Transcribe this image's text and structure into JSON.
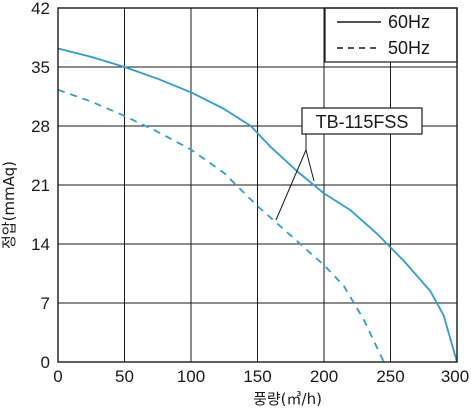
{
  "chart_data": {
    "type": "line",
    "title": "",
    "xlabel": "풍량(㎥/h)",
    "ylabel": "정압(mmAq)",
    "xlim": [
      0,
      300
    ],
    "ylim": [
      0,
      42
    ],
    "xticks": [
      0,
      50,
      100,
      150,
      200,
      250,
      300
    ],
    "yticks": [
      0,
      7,
      14,
      21,
      28,
      35,
      42
    ],
    "grid": true,
    "legend_position": "top-right",
    "line_color": "#2a9fd6",
    "series": [
      {
        "name": "60Hz",
        "style": "solid",
        "x": [
          0,
          25,
          50,
          75,
          100,
          125,
          145,
          160,
          180,
          200,
          220,
          240,
          260,
          280,
          290,
          300
        ],
        "y": [
          37.2,
          36.2,
          35.0,
          33.6,
          32.0,
          30.0,
          28.0,
          25.5,
          22.6,
          20.0,
          18.0,
          15.2,
          12.0,
          8.4,
          5.5,
          0
        ]
      },
      {
        "name": "50Hz",
        "style": "dashed",
        "x": [
          0,
          25,
          50,
          75,
          100,
          125,
          150,
          175,
          200,
          215,
          230,
          245
        ],
        "y": [
          32.3,
          30.9,
          29.2,
          27.3,
          25.2,
          22.4,
          18.5,
          15.0,
          11.5,
          9.0,
          5.0,
          0
        ]
      }
    ],
    "annotation": "TB-115FSS"
  }
}
